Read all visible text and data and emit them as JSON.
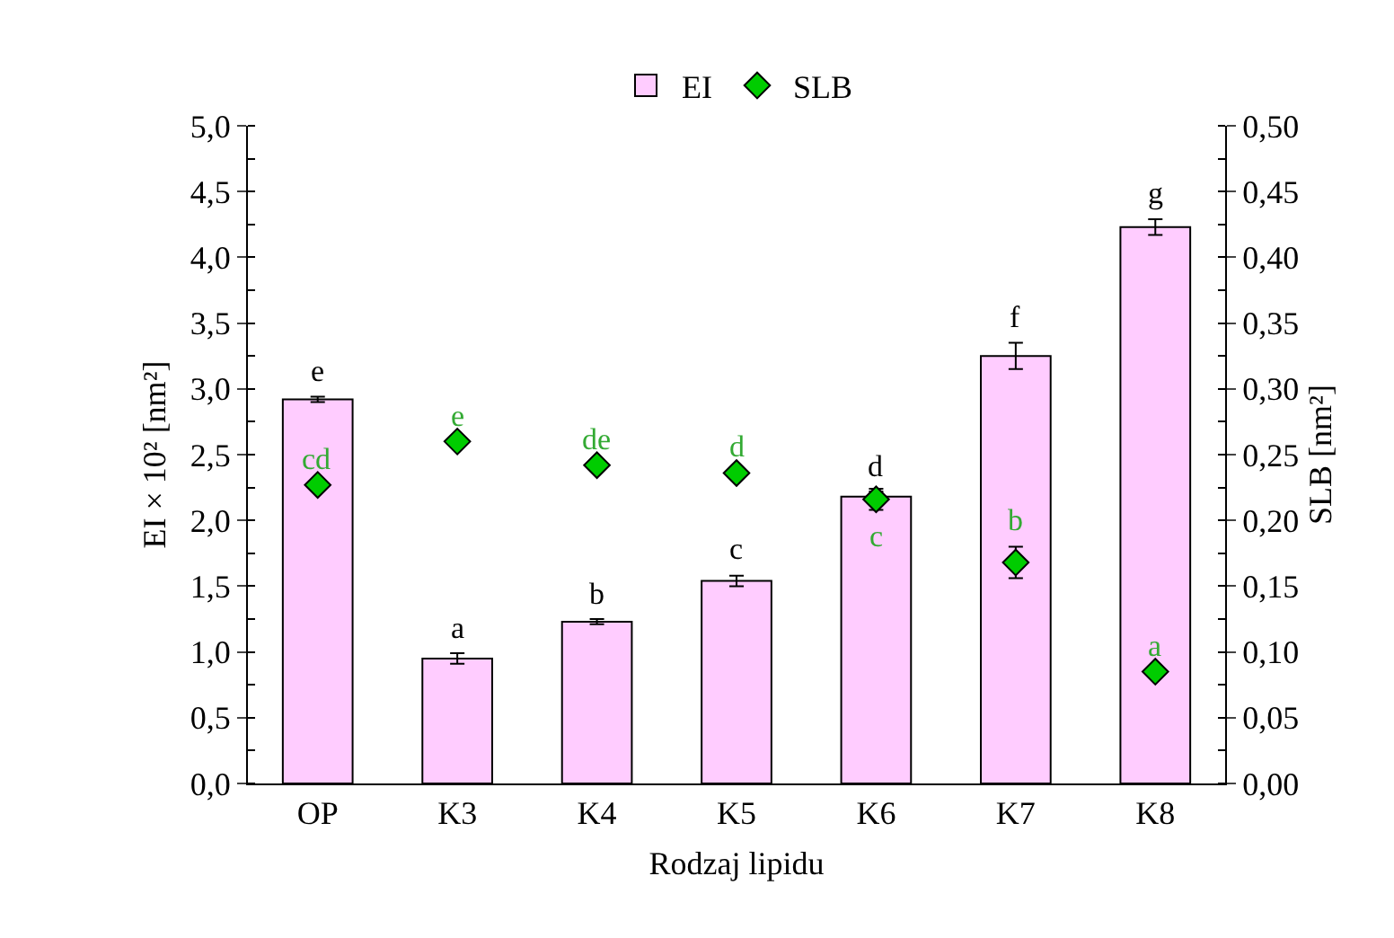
{
  "chart_data": {
    "type": "bar",
    "xlabel": "Rodzaj lipidu",
    "ylabel": "EI × 10² [nm²]",
    "y2label": "SLB [nm²]",
    "categories": [
      "OP",
      "K3",
      "K4",
      "K5",
      "K6",
      "K7",
      "K8"
    ],
    "series": [
      {
        "name": "EI",
        "color": "#ffccff",
        "values": [
          2.92,
          0.95,
          1.23,
          1.54,
          2.18,
          3.25,
          4.23
        ],
        "errors": [
          0.02,
          0.04,
          0.02,
          0.04,
          0.04,
          0.1,
          0.06
        ],
        "value_labels": [
          "e",
          "a",
          "b",
          "c",
          "d",
          "f",
          "g"
        ]
      },
      {
        "name": "SLB",
        "type": "scatter",
        "axis": "y2",
        "color": "#00cc00",
        "marker": "diamond",
        "values": [
          0.227,
          0.26,
          0.242,
          0.236,
          0.216,
          0.168,
          0.085
        ],
        "errors": [
          null,
          null,
          null,
          null,
          0.008,
          0.012,
          null
        ],
        "value_labels": [
          "cd",
          "e",
          "de",
          "d",
          "c",
          "b",
          "a"
        ]
      }
    ],
    "ylim": [
      0,
      5
    ],
    "yticks": [
      {
        "value": 0,
        "label": "0,0"
      },
      {
        "value": 0.5,
        "label": "0,5"
      },
      {
        "value": 1,
        "label": "1,0"
      },
      {
        "value": 1.5,
        "label": "1,5"
      },
      {
        "value": 2,
        "label": "2,0"
      },
      {
        "value": 2.5,
        "label": "2,5"
      },
      {
        "value": 3,
        "label": "3,0"
      },
      {
        "value": 3.5,
        "label": "3,5"
      },
      {
        "value": 4,
        "label": "4,0"
      },
      {
        "value": 4.5,
        "label": "4,5"
      },
      {
        "value": 5,
        "label": "5,0"
      }
    ],
    "y2lim": [
      0,
      0.5
    ],
    "y2ticks": [
      {
        "value": 0,
        "label": "0,00"
      },
      {
        "value": 0.05,
        "label": "0,05"
      },
      {
        "value": 0.1,
        "label": "0,10"
      },
      {
        "value": 0.15,
        "label": "0,15"
      },
      {
        "value": 0.2,
        "label": "0,20"
      },
      {
        "value": 0.25,
        "label": "0,25"
      },
      {
        "value": 0.3,
        "label": "0,30"
      },
      {
        "value": 0.35,
        "label": "0,35"
      },
      {
        "value": 0.4,
        "label": "0,40"
      },
      {
        "value": 0.45,
        "label": "0,45"
      },
      {
        "value": 0.5,
        "label": "0,50"
      }
    ],
    "grid": false,
    "legend": "top"
  }
}
